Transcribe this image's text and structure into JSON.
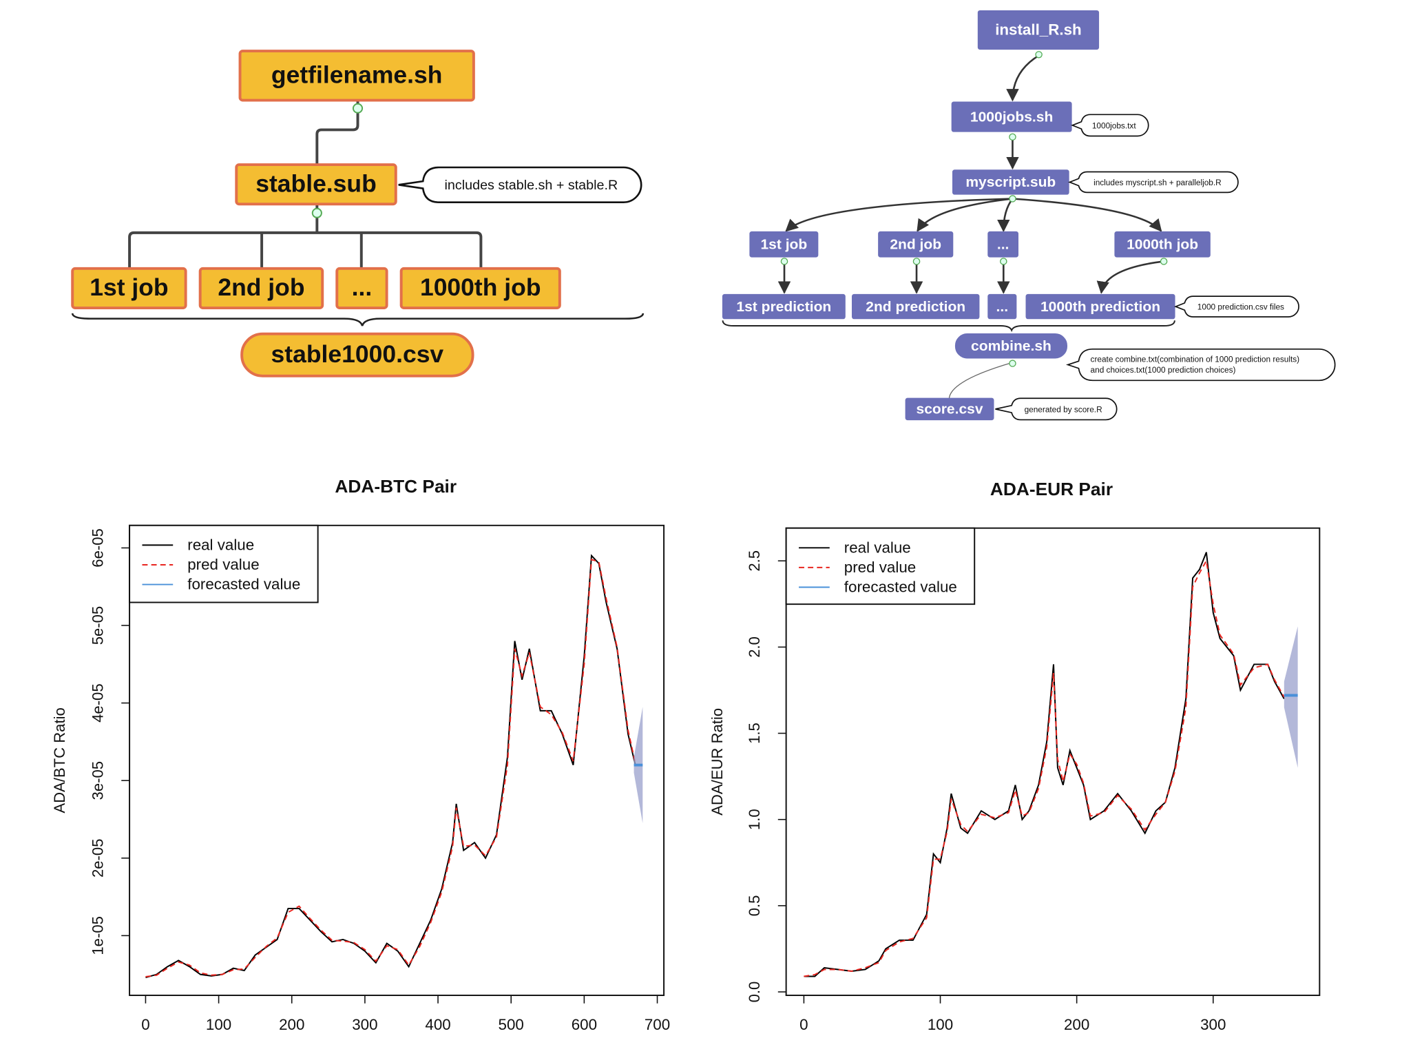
{
  "left_diagram": {
    "nodes": [
      "getfilename.sh",
      "stable.sub",
      "1st job",
      "2nd job",
      "...",
      "1000th job",
      "stable1000.csv"
    ],
    "notes": [
      "includes stable.sh + stable.R"
    ]
  },
  "right_diagram": {
    "nodes": [
      "install_R.sh",
      "1000jobs.sh",
      "myscript.sub",
      "1st job",
      "2nd job",
      "...",
      "1000th job",
      "1st prediction",
      "2nd prediction",
      "...",
      "1000th prediction",
      "combine.sh",
      "score.csv"
    ],
    "notes": [
      "1000jobs.txt",
      "includes myscript.sh + paralleljob.R",
      "1000 prediction.csv files",
      "create combine.txt(combination of 1000 prediction results)",
      "and choices.txt(1000 prediction choices)",
      "generated by score.R"
    ]
  },
  "chart_data": [
    {
      "type": "line",
      "title": "ADA-BTC Pair",
      "y_label": "ADA/BTC Ratio",
      "legend": "upper left",
      "x": [
        0,
        15,
        30,
        45,
        60,
        75,
        90,
        105,
        120,
        135,
        150,
        165,
        180,
        195,
        210,
        225,
        240,
        255,
        270,
        285,
        300,
        315,
        330,
        345,
        360,
        375,
        390,
        405,
        420,
        425,
        435,
        450,
        465,
        480,
        495,
        505,
        515,
        525,
        540,
        555,
        570,
        585,
        600,
        610,
        620,
        630,
        645,
        660,
        670
      ],
      "series": [
        {
          "name": "real value",
          "color": "#000000",
          "dash": "solid",
          "values": [
            4.6e-06,
            5e-06,
            6e-06,
            6.8e-06,
            6e-06,
            5e-06,
            4.8e-06,
            5e-06,
            5.8e-06,
            5.5e-06,
            7.5e-06,
            8.5e-06,
            9.5e-06,
            1.35e-05,
            1.35e-05,
            1.2e-05,
            1.05e-05,
            9.2e-06,
            9.5e-06,
            9e-06,
            8e-06,
            6.5e-06,
            9e-06,
            8e-06,
            6e-06,
            9e-06,
            1.2e-05,
            1.6e-05,
            2.2e-05,
            2.7e-05,
            2.1e-05,
            2.2e-05,
            2e-05,
            2.3e-05,
            3.3e-05,
            4.8e-05,
            4.3e-05,
            4.7e-05,
            3.9e-05,
            3.9e-05,
            3.6e-05,
            3.2e-05,
            4.6e-05,
            5.9e-05,
            5.8e-05,
            5.3e-05,
            4.7e-05,
            3.6e-05,
            3.2e-05
          ]
        },
        {
          "name": "pred value",
          "color": "#e8251f",
          "dash": "dashed",
          "values": [
            4.7e-06,
            4.9e-06,
            5.8e-06,
            6.6e-06,
            6.2e-06,
            5.2e-06,
            4.9e-06,
            5e-06,
            5.6e-06,
            5.7e-06,
            7.2e-06,
            8.6e-06,
            9.7e-06,
            1.3e-05,
            1.38e-05,
            1.22e-05,
            1.07e-05,
            9.4e-06,
            9.3e-06,
            9.1e-06,
            8.2e-06,
            6.7e-06,
            8.7e-06,
            8.2e-06,
            6.2e-06,
            8.6e-06,
            1.17e-05,
            1.56e-05,
            2.15e-05,
            2.65e-05,
            2.15e-05,
            2.17e-05,
            2.03e-05,
            2.27e-05,
            3.2e-05,
            4.7e-05,
            4.35e-05,
            4.65e-05,
            3.95e-05,
            3.85e-05,
            3.62e-05,
            3.25e-05,
            4.5e-05,
            5.85e-05,
            5.82e-05,
            5.35e-05,
            4.72e-05,
            3.65e-05,
            3.22e-05
          ]
        },
        {
          "name": "forecasted value",
          "color": "#4a90d9",
          "dash": "solid",
          "band_color": "#9aa0cc",
          "x": [
            668,
            680
          ],
          "values": [
            3.2e-05,
            3.2e-05
          ],
          "lower": [
            3.1e-05,
            2.45e-05
          ],
          "upper": [
            3.3e-05,
            3.95e-05
          ]
        }
      ],
      "xlim": [
        -22,
        709
      ],
      "ylim": [
        2.3e-06,
        6.29e-05
      ],
      "xticks": [
        0,
        100,
        200,
        300,
        400,
        500,
        600,
        700
      ],
      "yticks": [
        {
          "value": 1e-05,
          "label": "1e-05"
        },
        {
          "value": 2e-05,
          "label": "2e-05"
        },
        {
          "value": 3e-05,
          "label": "3e-05"
        },
        {
          "value": 4e-05,
          "label": "4e-05"
        },
        {
          "value": 5e-05,
          "label": "5e-05"
        },
        {
          "value": 6e-05,
          "label": "6e-05"
        }
      ]
    },
    {
      "type": "line",
      "title": "ADA-EUR Pair",
      "y_label": "ADA/EUR Ratio",
      "legend": "upper left",
      "x": [
        0,
        8,
        15,
        25,
        35,
        45,
        55,
        60,
        70,
        80,
        90,
        95,
        100,
        105,
        108,
        115,
        120,
        130,
        140,
        150,
        155,
        160,
        165,
        172,
        178,
        183,
        186,
        190,
        195,
        200,
        205,
        210,
        220,
        230,
        240,
        250,
        258,
        265,
        272,
        280,
        285,
        290,
        295,
        300,
        305,
        315,
        320,
        330,
        340,
        345,
        352
      ],
      "series": [
        {
          "name": "real value",
          "color": "#000000",
          "dash": "solid",
          "values": [
            0.09,
            0.09,
            0.14,
            0.13,
            0.12,
            0.13,
            0.18,
            0.25,
            0.3,
            0.3,
            0.45,
            0.8,
            0.75,
            0.95,
            1.15,
            0.95,
            0.92,
            1.05,
            1.0,
            1.05,
            1.2,
            1.0,
            1.05,
            1.2,
            1.45,
            1.9,
            1.3,
            1.2,
            1.4,
            1.3,
            1.2,
            1.0,
            1.05,
            1.15,
            1.05,
            0.92,
            1.05,
            1.1,
            1.3,
            1.7,
            2.4,
            2.45,
            2.55,
            2.2,
            2.05,
            1.95,
            1.75,
            1.9,
            1.9,
            1.8,
            1.7
          ]
        },
        {
          "name": "pred value",
          "color": "#e8251f",
          "dash": "dashed",
          "values": [
            0.09,
            0.1,
            0.13,
            0.13,
            0.12,
            0.14,
            0.17,
            0.24,
            0.29,
            0.31,
            0.43,
            0.77,
            0.77,
            0.93,
            1.12,
            0.97,
            0.93,
            1.03,
            1.01,
            1.04,
            1.17,
            1.02,
            1.04,
            1.18,
            1.42,
            1.85,
            1.35,
            1.22,
            1.38,
            1.32,
            1.21,
            1.02,
            1.04,
            1.14,
            1.06,
            0.94,
            1.03,
            1.1,
            1.28,
            1.65,
            2.35,
            2.43,
            2.5,
            2.25,
            2.07,
            1.96,
            1.78,
            1.88,
            1.9,
            1.81,
            1.71
          ]
        },
        {
          "name": "forecasted value",
          "color": "#4a90d9",
          "dash": "solid",
          "band_color": "#9aa0cc",
          "x": [
            352,
            362
          ],
          "values": [
            1.72,
            1.72
          ],
          "lower": [
            1.65,
            1.3
          ],
          "upper": [
            1.8,
            2.12
          ]
        }
      ],
      "xlim": [
        -13,
        378
      ],
      "ylim": [
        -0.02,
        2.69
      ],
      "xticks": [
        0,
        100,
        200,
        300
      ],
      "yticks": [
        {
          "value": 0,
          "label": "0.0"
        },
        0.5,
        {
          "value": 1,
          "label": "1.0"
        },
        1.5,
        {
          "value": 2,
          "label": "2.0"
        },
        2.5
      ]
    }
  ]
}
